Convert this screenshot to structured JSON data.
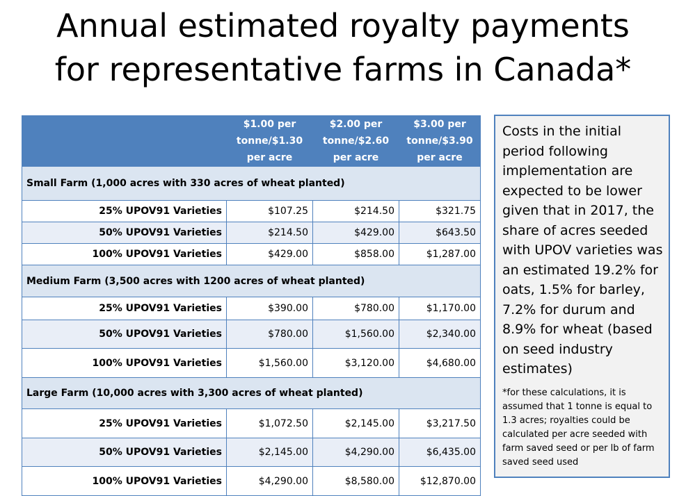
{
  "title": {
    "line1": "Annual estimated royalty payments",
    "line2": "for representative farms in Canada*"
  },
  "table": {
    "columns": [
      "$1.00 per tonne/$1.30 per acre",
      "$2.00 per tonne/$2.60 per acre",
      "$3.00 per tonne/$3.90 per acre"
    ],
    "groups": [
      {
        "label": "Small Farm (1,000 acres with 330 acres of wheat planted)",
        "rows": [
          {
            "label": "25% UPOV91 Varieties",
            "values": [
              "$107.25",
              "$214.50",
              "$321.75"
            ]
          },
          {
            "label": "50% UPOV91 Varieties",
            "values": [
              "$214.50",
              "$429.00",
              "$643.50"
            ]
          },
          {
            "label": "100% UPOV91 Varieties",
            "values": [
              "$429.00",
              "$858.00",
              "$1,287.00"
            ]
          }
        ]
      },
      {
        "label": "Medium Farm (3,500 acres with 1200 acres of wheat planted)",
        "rows": [
          {
            "label": "25% UPOV91 Varieties",
            "values": [
              "$390.00",
              "$780.00",
              "$1,170.00"
            ]
          },
          {
            "label": "50% UPOV91 Varieties",
            "values": [
              "$780.00",
              "$1,560.00",
              "$2,340.00"
            ]
          },
          {
            "label": "100% UPOV91 Varieties",
            "values": [
              "$1,560.00",
              "$3,120.00",
              "$4,680.00"
            ]
          }
        ]
      },
      {
        "label": "Large Farm (10,000 acres with 3,300 acres of wheat planted)",
        "rows": [
          {
            "label": "25% UPOV91 Varieties",
            "values": [
              "$1,072.50",
              "$2,145.00",
              "$3,217.50"
            ]
          },
          {
            "label": "50% UPOV91 Varieties",
            "values": [
              "$2,145.00",
              "$4,290.00",
              "$6,435.00"
            ]
          },
          {
            "label": "100% UPOV91 Varieties",
            "values": [
              "$4,290.00",
              "$8,580.00",
              "$12,870.00"
            ]
          }
        ]
      }
    ]
  },
  "note": {
    "body": "Costs in the initial period following implementation are expected to be lower given that in 2017, the share of acres seeded with UPOV varieties was an estimated 19.2% for oats, 1.5% for barley, 7.2% for durum and 8.9% for wheat (based on seed industry estimates)",
    "footnote": "*for these calculations, it is assumed that 1 tonne is equal to 1.3 acres; royalties could be calculated per acre seeded with farm saved seed or per lb of farm saved seed used"
  },
  "colors": {
    "header": "#4f81bd",
    "group_band": "#dbe5f1",
    "alt_row": "#e9eef7",
    "note_bg": "#f2f2f2"
  }
}
